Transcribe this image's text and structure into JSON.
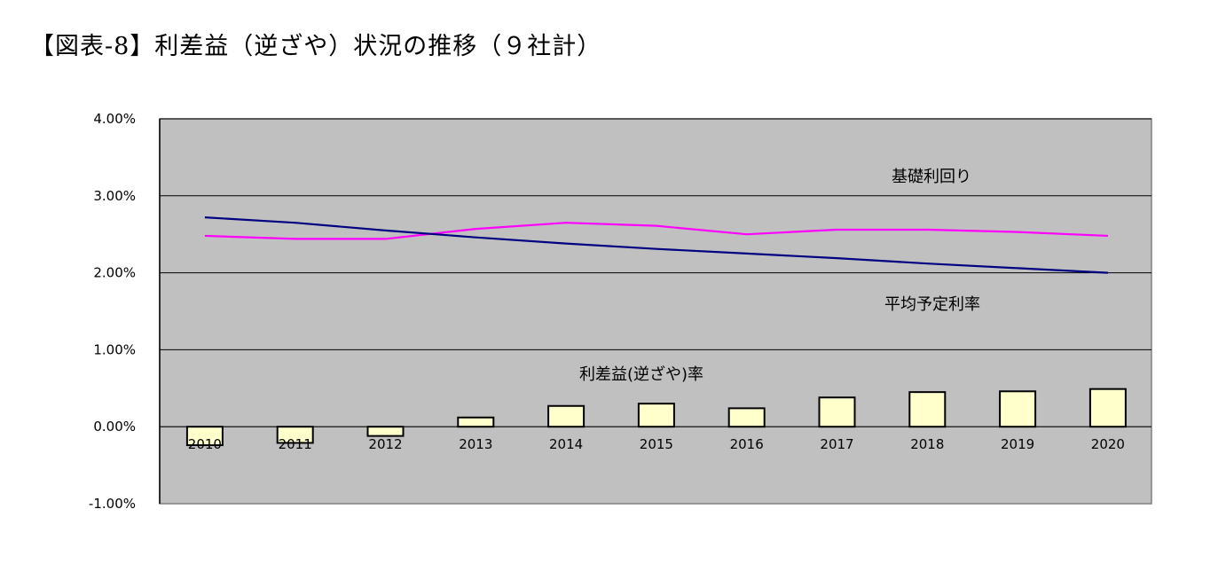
{
  "page": {
    "title": "【図表-8】利差益（逆ざや）状況の推移（９社計）"
  },
  "chart_data": {
    "type": "bar",
    "title": "",
    "xlabel": "",
    "ylabel": "",
    "categories": [
      "2010",
      "2011",
      "2012",
      "2013",
      "2014",
      "2015",
      "2016",
      "2017",
      "2018",
      "2019",
      "2020"
    ],
    "ylim": [
      -1.0,
      4.0
    ],
    "y_ticks": [
      4.0,
      3.0,
      2.0,
      1.0,
      0.0,
      -1.0
    ],
    "y_tick_labels": [
      "4.00%",
      "3.00%",
      "2.00%",
      "1.00%",
      "0.00%",
      "-1.00%"
    ],
    "grid": true,
    "plot_background": "#c0c0c0",
    "series": [
      {
        "name": "利差益(逆ざや)率",
        "type": "bar",
        "color": "#ffffcc",
        "values": [
          -0.24,
          -0.21,
          -0.12,
          0.12,
          0.27,
          0.3,
          0.24,
          0.38,
          0.45,
          0.46,
          0.49
        ]
      },
      {
        "name": "基礎利回り",
        "type": "line",
        "color": "#ff00ff",
        "values": [
          2.48,
          2.44,
          2.44,
          2.57,
          2.65,
          2.61,
          2.5,
          2.56,
          2.56,
          2.53,
          2.48
        ]
      },
      {
        "name": "平均予定利率",
        "type": "line",
        "color": "#000080",
        "values": [
          2.72,
          2.65,
          2.55,
          2.46,
          2.38,
          2.31,
          2.25,
          2.19,
          2.12,
          2.06,
          2.0
        ]
      }
    ],
    "annotations": {
      "basic_yield": "基礎利回り",
      "avg_assumed_rate": "平均予定利率",
      "spread_rate": "利差益(逆ざや)率"
    }
  }
}
